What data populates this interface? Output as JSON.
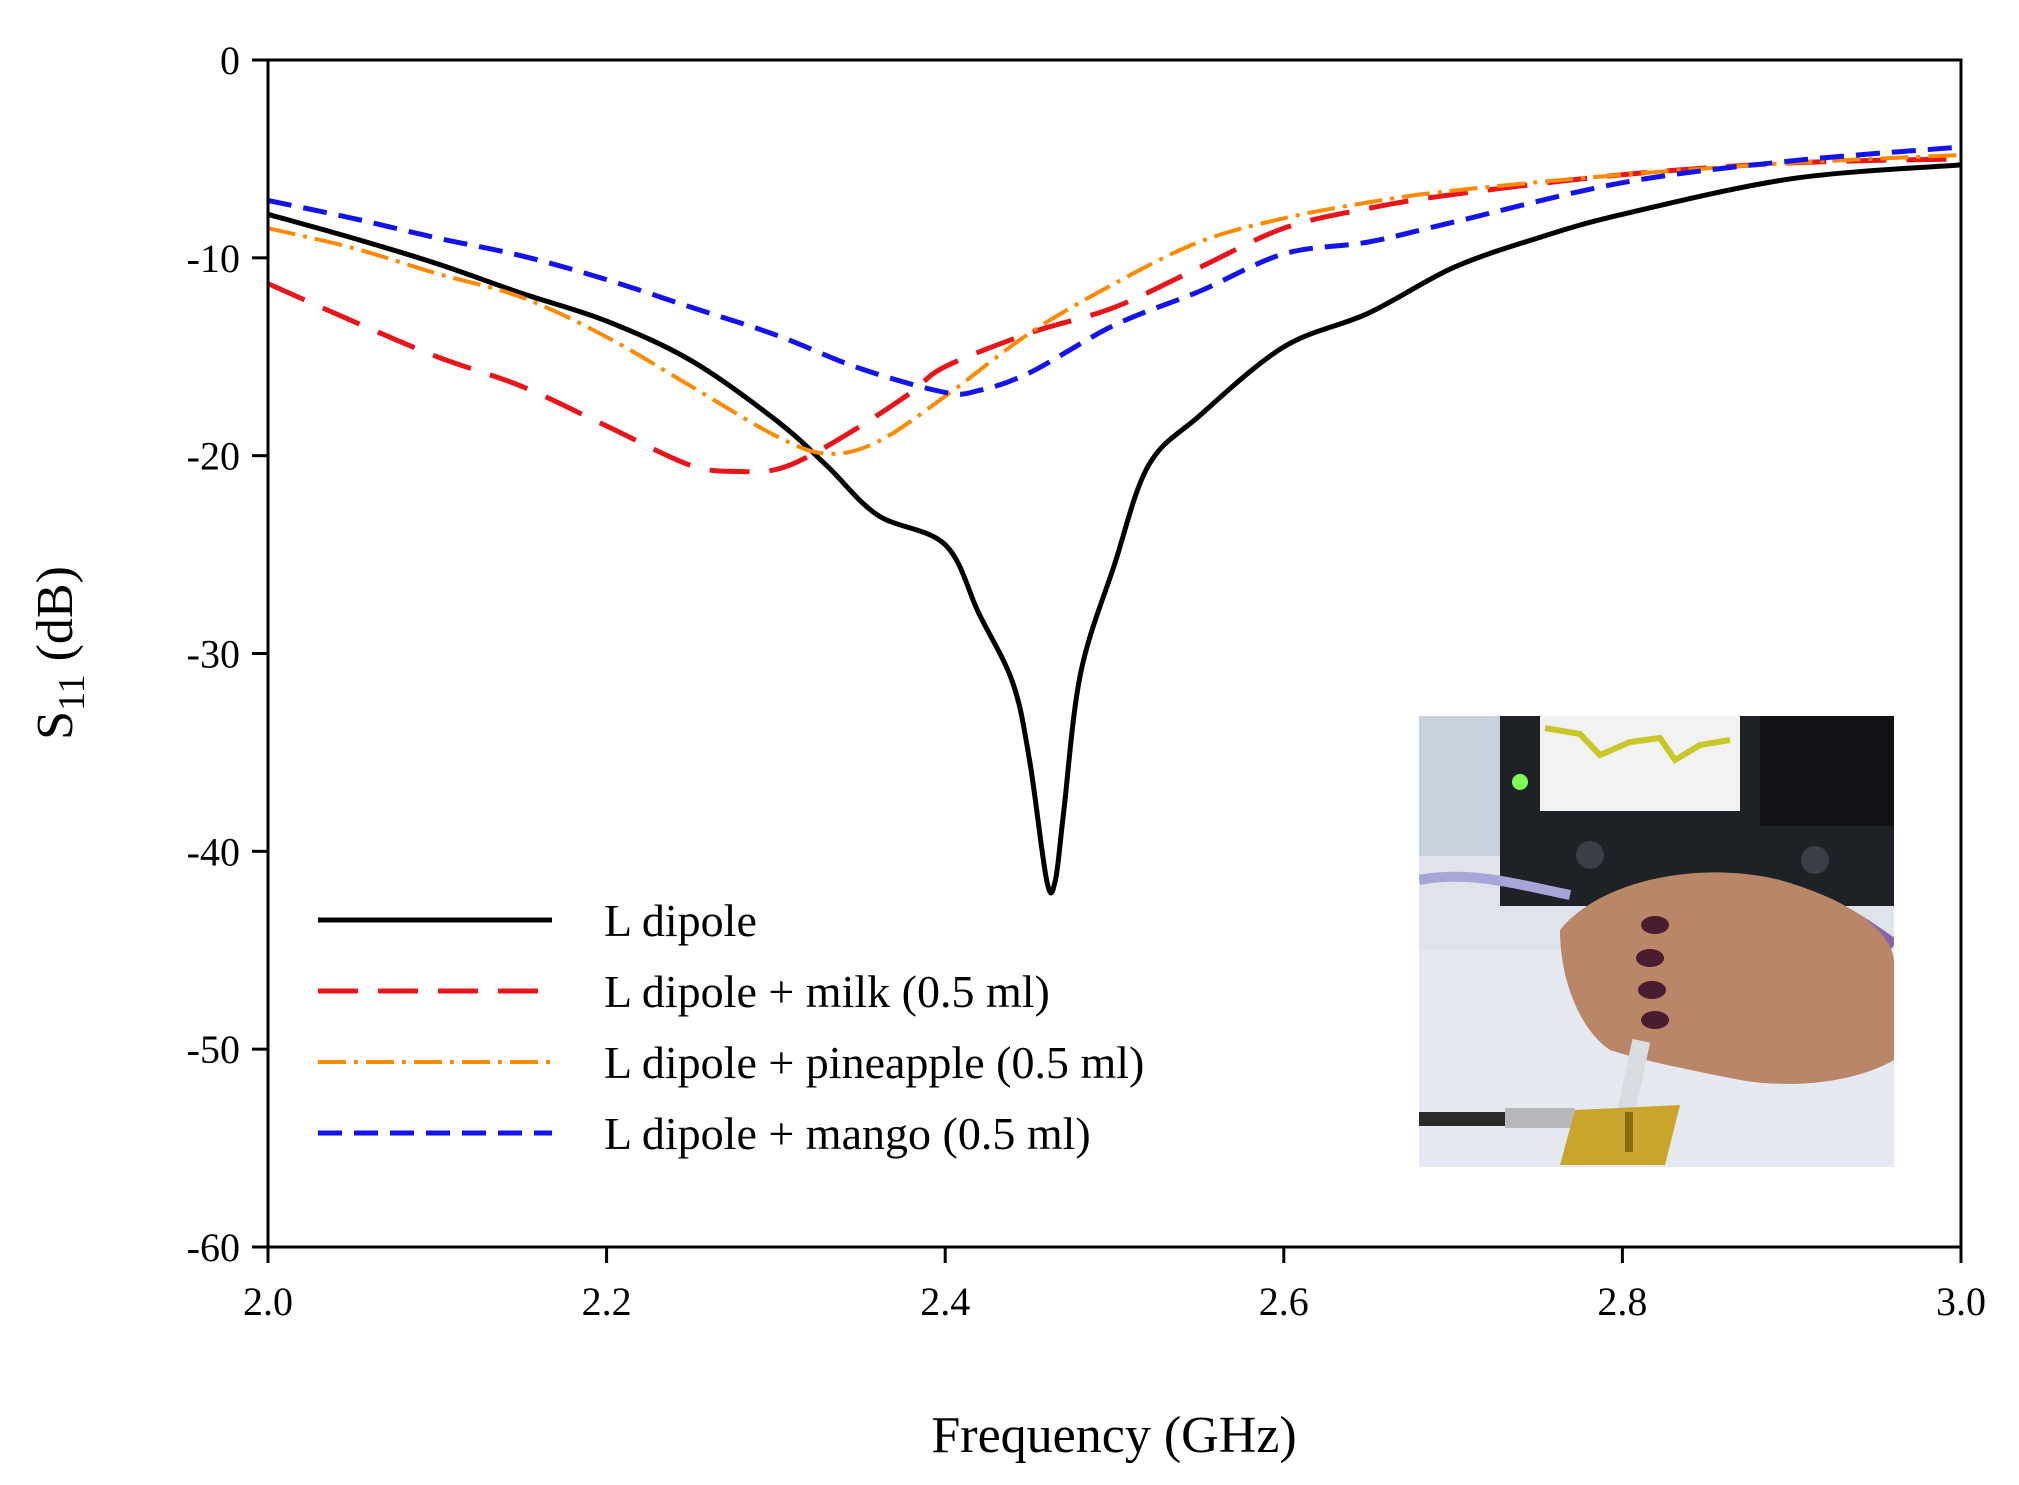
{
  "chart_data": {
    "type": "line",
    "title": "",
    "xlabel": "Frequency (GHz)",
    "ylabel_main": "S",
    "ylabel_sub": "11",
    "ylabel_unit": " (dB)",
    "xlim": [
      2.0,
      3.0
    ],
    "ylim": [
      -60,
      0
    ],
    "xticks": [
      "2.0",
      "2.2",
      "2.4",
      "2.6",
      "2.8",
      "3.0"
    ],
    "yticks": [
      "0",
      "-10",
      "-20",
      "-30",
      "-40",
      "-50",
      "-60"
    ],
    "legend_position": "bottom-left",
    "inset": "photo of hand injecting liquid onto antenna connected to analyzer",
    "series": [
      {
        "name": "L dipole",
        "color": "#000000",
        "style": "solid",
        "x": [
          2.0,
          2.05,
          2.1,
          2.15,
          2.2,
          2.25,
          2.3,
          2.33,
          2.36,
          2.4,
          2.42,
          2.44,
          2.45,
          2.46,
          2.465,
          2.47,
          2.48,
          2.5,
          2.52,
          2.55,
          2.6,
          2.65,
          2.7,
          2.75,
          2.8,
          2.9,
          3.0
        ],
        "y": [
          -7.8,
          -9.0,
          -10.3,
          -11.8,
          -13.2,
          -15.2,
          -18.2,
          -20.5,
          -23.0,
          -24.5,
          -28.0,
          -31.5,
          -35.5,
          -41.5,
          -41.5,
          -38.0,
          -31.0,
          -25.5,
          -20.5,
          -18.0,
          -14.5,
          -12.8,
          -10.5,
          -9.0,
          -7.8,
          -6.0,
          -5.3
        ]
      },
      {
        "name": "L dipole + milk (0.5 ml)",
        "color": "#e8151b",
        "style": "dashed",
        "x": [
          2.0,
          2.05,
          2.1,
          2.15,
          2.2,
          2.25,
          2.28,
          2.3,
          2.32,
          2.35,
          2.38,
          2.4,
          2.45,
          2.5,
          2.55,
          2.6,
          2.65,
          2.7,
          2.8,
          2.9,
          3.0
        ],
        "y": [
          -11.3,
          -13.2,
          -15.0,
          -16.5,
          -18.5,
          -20.5,
          -20.8,
          -20.7,
          -20.0,
          -18.5,
          -16.8,
          -15.5,
          -13.8,
          -12.5,
          -10.5,
          -8.5,
          -7.5,
          -6.8,
          -5.8,
          -5.2,
          -5.0
        ]
      },
      {
        "name": "L dipole + pineapple (0.5 ml)",
        "color": "#ff8a00",
        "style": "dashdot",
        "x": [
          2.0,
          2.05,
          2.1,
          2.15,
          2.2,
          2.25,
          2.3,
          2.33,
          2.36,
          2.4,
          2.45,
          2.5,
          2.55,
          2.6,
          2.65,
          2.7,
          2.8,
          2.9,
          3.0
        ],
        "y": [
          -8.5,
          -9.5,
          -10.8,
          -12.0,
          -14.0,
          -16.5,
          -19.0,
          -19.9,
          -19.3,
          -17.0,
          -13.8,
          -11.3,
          -9.2,
          -8.0,
          -7.2,
          -6.6,
          -5.8,
          -5.2,
          -4.8
        ]
      },
      {
        "name": "L dipole + mango (0.5 ml)",
        "color": "#1313f0",
        "style": "dashed",
        "x": [
          2.0,
          2.05,
          2.1,
          2.15,
          2.2,
          2.25,
          2.3,
          2.35,
          2.4,
          2.42,
          2.45,
          2.5,
          2.55,
          2.6,
          2.65,
          2.7,
          2.8,
          2.9,
          3.0
        ],
        "y": [
          -7.1,
          -8.0,
          -9.0,
          -9.9,
          -11.1,
          -12.5,
          -13.9,
          -15.6,
          -16.8,
          -16.7,
          -15.8,
          -13.4,
          -11.7,
          -9.8,
          -9.2,
          -8.2,
          -6.2,
          -5.1,
          -4.4
        ]
      }
    ]
  }
}
